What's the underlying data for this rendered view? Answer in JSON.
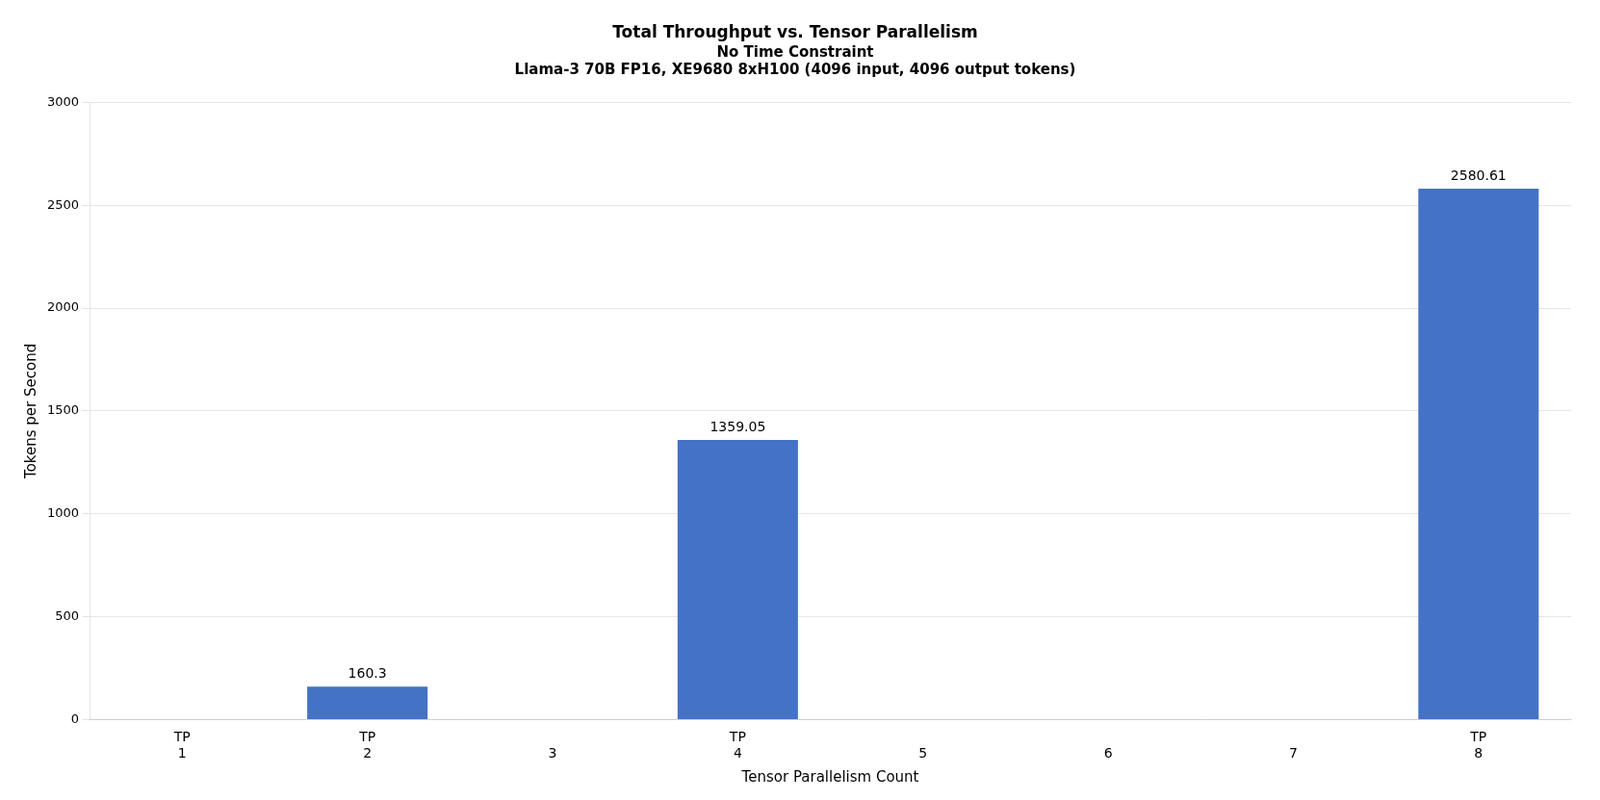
{
  "chart_data": {
    "type": "bar",
    "title": "Total Throughput vs. Tensor Parallelism",
    "subtitle": [
      "No Time Constraint",
      "Llama-3 70B FP16, XE9680 8xH100 (4096 input, 4096 output tokens)"
    ],
    "xlabel": "Tensor Parallelism Count",
    "ylabel": "Tokens per Second",
    "categories": [
      1,
      2,
      3,
      4,
      5,
      6,
      7,
      8
    ],
    "table_row": [
      "TP",
      "TP",
      null,
      "TP",
      null,
      null,
      null,
      "TP"
    ],
    "values": [
      0,
      160.3,
      0,
      1359.05,
      0,
      0,
      0,
      2580.61
    ],
    "value_labels": [
      null,
      "160.3",
      null,
      "1359.05",
      null,
      null,
      null,
      "2580.61"
    ],
    "data_labels": true,
    "color": "#4472C4",
    "ylim": [
      0,
      3000
    ],
    "yticks": [
      0,
      500,
      1000,
      1500,
      2000,
      2500,
      3000
    ],
    "grid": true
  }
}
